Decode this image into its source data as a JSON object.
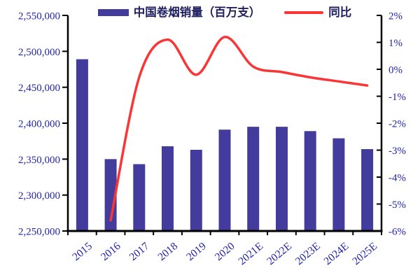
{
  "legend": {
    "sales_label": "中国卷烟销量（百万支）",
    "yoy_label": "同比"
  },
  "chart_data": {
    "type": "bar",
    "subtype": "bar-line-combo",
    "title": "",
    "categories": [
      "2015",
      "2016",
      "2017",
      "2018",
      "2019",
      "2020",
      "2021E",
      "2022E",
      "2023E",
      "2024E",
      "2025E"
    ],
    "series": [
      {
        "name": "中国卷烟销量（百万支）",
        "type": "bar",
        "axis": "left",
        "color": "#443c9c",
        "values": [
          2489000,
          2350000,
          2343000,
          2368000,
          2363000,
          2391000,
          2395000,
          2395000,
          2389000,
          2379000,
          2364000
        ]
      },
      {
        "name": "同比",
        "type": "line",
        "axis": "right",
        "color": "#fa3535",
        "values": [
          null,
          -5.6,
          -0.3,
          1.1,
          -0.2,
          1.2,
          0.1,
          -0.1,
          -0.3,
          -0.45,
          -0.6
        ]
      }
    ],
    "left_axis": {
      "min": 2250000,
      "max": 2550000,
      "step": 50000,
      "tick_labels": [
        "2,550,000",
        "2,500,000",
        "2,450,000",
        "2,400,000",
        "2,350,000",
        "2,300,000",
        "2,250,000"
      ]
    },
    "right_axis": {
      "min": -6,
      "max": 2,
      "step": 1,
      "tick_labels": [
        "2%",
        "1%",
        "0%",
        "-1%",
        "-2%",
        "-3%",
        "-4%",
        "-5%",
        "-6%"
      ]
    },
    "grid": false,
    "legend_position": "top",
    "colors": {
      "axis_label": "#2525aa",
      "legend_text": "#202060",
      "axis_line": "#000000",
      "background": "#ffffff"
    }
  }
}
